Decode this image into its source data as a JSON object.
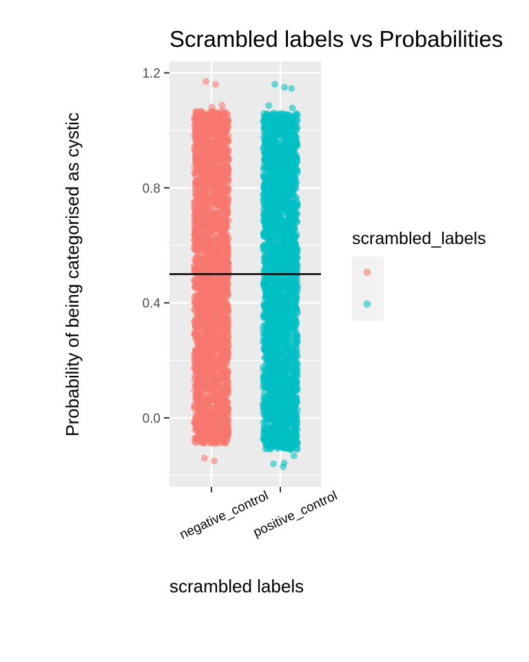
{
  "chart_data": {
    "type": "scatter",
    "title": "Scrambled labels vs Probabilities",
    "xlabel": "scrambled labels",
    "ylabel": "Probability of being categorised as cystic",
    "categories": [
      "negative_control",
      "positive_control"
    ],
    "ylim": [
      -0.24,
      1.24
    ],
    "yticks": [
      "0.0",
      "0.4",
      "0.8",
      "1.2"
    ],
    "ytick_values": [
      0.0,
      0.4,
      0.8,
      1.2
    ],
    "hline": 0.5,
    "grid": true,
    "legend": {
      "title": "scrambled_labels",
      "position": "right",
      "entries": [
        {
          "name": "negative_control",
          "color": "#F8766D"
        },
        {
          "name": "positive_control",
          "color": "#00BFC4"
        }
      ]
    },
    "series": [
      {
        "name": "negative_control",
        "color": "#F8766D",
        "y_range": [
          -0.15,
          1.17
        ],
        "points_min": -0.15,
        "points_max": 1.17
      },
      {
        "name": "positive_control",
        "color": "#00BFC4",
        "y_range": [
          -0.17,
          1.16
        ],
        "points_min": -0.17,
        "points_max": 1.16
      }
    ]
  }
}
